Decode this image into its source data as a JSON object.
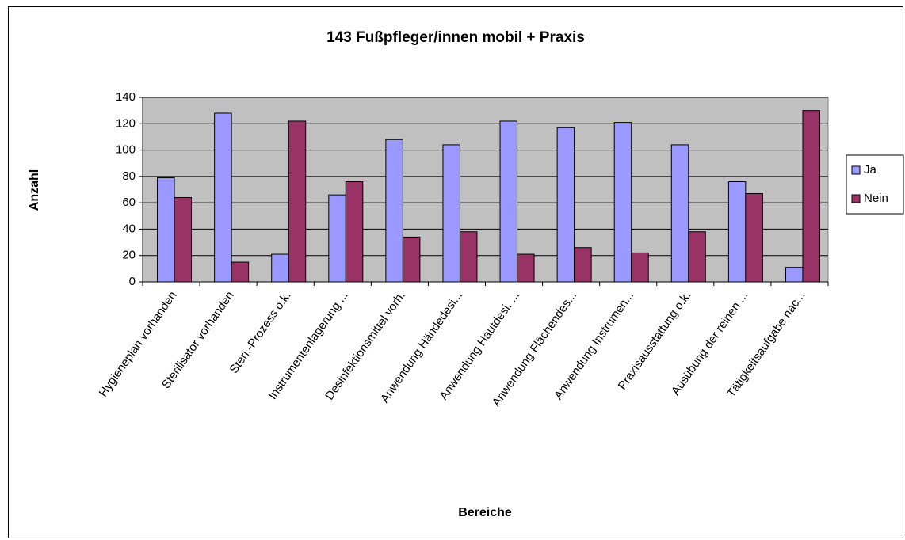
{
  "chart_data": {
    "type": "bar",
    "title": "143 Fußpfleger/innen mobil + Praxis",
    "x_label": "Bereiche",
    "y_label": "Anzahl",
    "categories": [
      "Hygieneplan vorhanden",
      "Sterilisator vorhanden",
      "Steri.-Prozess o.k.",
      "Instrumentenlagerung ...",
      "Desinfektionsmittel vorh.",
      "Anwendung Händedesi...",
      "Anwendung Hautdesi. ...",
      "Anwendung Flächendes...",
      "Anwendung Instrumen...",
      "Praxisausstattung o.k.",
      "Ausübung der reinen ...",
      "Tätigkeitsaufgabe nac..."
    ],
    "series": [
      {
        "name": "Ja",
        "color": "#9999ff",
        "values": [
          79,
          128,
          21,
          66,
          108,
          104,
          122,
          117,
          121,
          104,
          76,
          11
        ]
      },
      {
        "name": "Nein",
        "color": "#993366",
        "values": [
          64,
          15,
          122,
          76,
          34,
          38,
          21,
          26,
          22,
          38,
          67,
          130
        ]
      }
    ],
    "ylim": [
      0,
      140
    ],
    "yticks": [
      0,
      20,
      40,
      60,
      80,
      100,
      120,
      140
    ],
    "grid": true,
    "plot_background": "#c0c0c0",
    "legend": "right"
  }
}
